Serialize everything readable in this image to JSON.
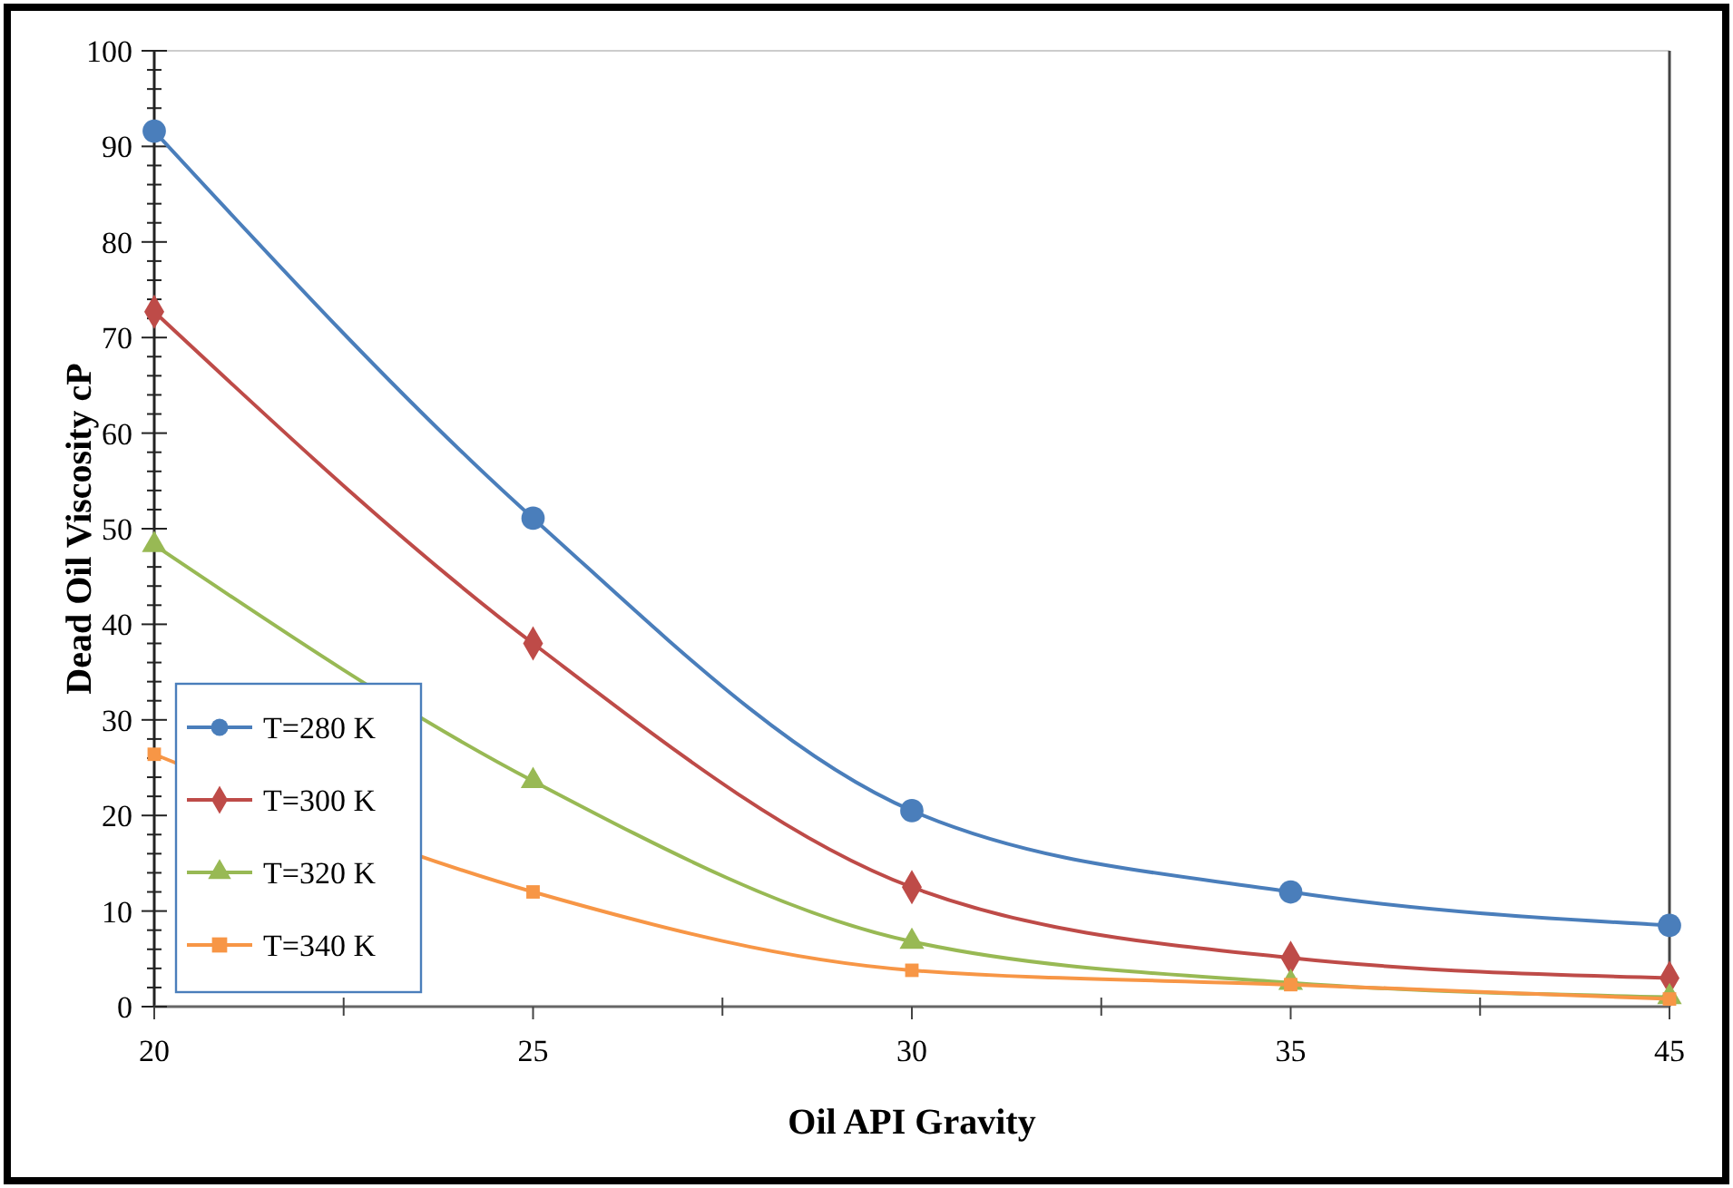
{
  "chart_data": {
    "type": "line",
    "xlabel": "Oil API Gravity",
    "ylabel": "Dead Oil Viscosity cP",
    "categories": [
      "20",
      "25",
      "30",
      "35",
      "45"
    ],
    "ylim": [
      0,
      100
    ],
    "yticks": [
      0,
      10,
      20,
      30,
      40,
      50,
      60,
      70,
      80,
      90,
      100
    ],
    "grid": false,
    "legend": "bottom left",
    "series": [
      {
        "name": "T=280 K",
        "color": "#4a7ebb",
        "marker": "circle",
        "values": [
          91.6,
          51.1,
          20.5,
          12,
          8.5
        ]
      },
      {
        "name": "T=300 K",
        "color": "#be4b48",
        "marker": "diamond",
        "values": [
          72.7,
          38,
          12.5,
          5.1,
          3
        ]
      },
      {
        "name": "T=320 K",
        "color": "#98b954",
        "marker": "triangle",
        "values": [
          48.3,
          23.6,
          6.8,
          2.5,
          1
        ]
      },
      {
        "name": "T=340 K",
        "color": "#f79646",
        "marker": "square",
        "values": [
          26.4,
          12,
          3.8,
          2.3,
          0.8
        ]
      }
    ]
  }
}
